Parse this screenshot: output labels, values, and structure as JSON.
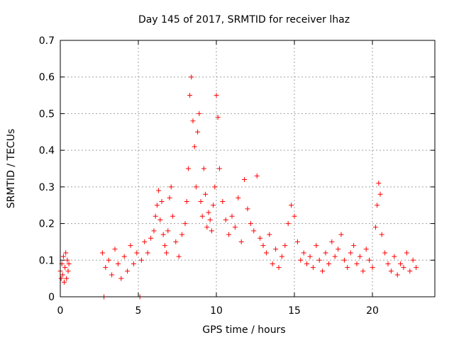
{
  "chart_data": {
    "type": "scatter",
    "title": "Day 145 of 2017, SRMTID for receiver lhaz",
    "xlabel": "GPS time / hours",
    "ylabel": "SRMTID / TECUs",
    "xlim": [
      0,
      24
    ],
    "ylim": [
      0,
      0.7
    ],
    "xticks": [
      0,
      5,
      10,
      15,
      20
    ],
    "xtick_labels": [
      "0",
      "5",
      "10",
      "15",
      "20"
    ],
    "yticks": [
      0,
      0.1,
      0.2,
      0.3,
      0.4,
      0.5,
      0.6,
      0.7
    ],
    "ytick_labels": [
      "0",
      "0.1",
      "0.2",
      "0.3",
      "0.4",
      "0.5",
      "0.6",
      "0.7"
    ],
    "grid": true,
    "marker": "plus",
    "color": "#ff0000",
    "series": [
      {
        "name": "SRMTID",
        "x": [
          0.0,
          0.05,
          0.1,
          0.15,
          0.2,
          0.25,
          0.3,
          0.35,
          0.4,
          0.45,
          0.5,
          0.55,
          2.8,
          5.1,
          2.7,
          2.9,
          3.1,
          3.3,
          3.5,
          3.7,
          3.9,
          4.1,
          4.3,
          4.5,
          4.7,
          4.9,
          5.2,
          5.4,
          5.6,
          5.8,
          6.0,
          6.1,
          6.2,
          6.3,
          6.4,
          6.5,
          6.6,
          6.7,
          6.8,
          6.9,
          7.0,
          7.1,
          7.2,
          7.4,
          7.6,
          7.8,
          8.0,
          8.1,
          8.2,
          8.3,
          8.4,
          8.5,
          8.6,
          8.7,
          8.8,
          8.9,
          9.0,
          9.1,
          9.2,
          9.3,
          9.4,
          9.5,
          9.6,
          9.7,
          9.8,
          9.9,
          10.0,
          10.1,
          10.2,
          10.4,
          10.6,
          10.8,
          11.0,
          11.2,
          11.4,
          11.6,
          11.8,
          12.0,
          12.2,
          12.4,
          12.6,
          12.8,
          13.0,
          13.2,
          13.4,
          13.6,
          13.8,
          14.0,
          14.2,
          14.4,
          14.6,
          14.8,
          15.0,
          15.2,
          15.4,
          15.6,
          15.8,
          16.0,
          16.2,
          16.4,
          16.6,
          16.8,
          17.0,
          17.2,
          17.4,
          17.6,
          17.8,
          18.0,
          18.2,
          18.4,
          18.6,
          18.8,
          19.0,
          19.2,
          19.4,
          19.6,
          19.8,
          20.0,
          20.2,
          20.3,
          20.4,
          20.5,
          20.6,
          20.8,
          21.0,
          21.2,
          21.4,
          21.6,
          21.8,
          22.0,
          22.2,
          22.4,
          22.6,
          22.8
        ],
        "y": [
          0.07,
          0.05,
          0.09,
          0.06,
          0.11,
          0.04,
          0.08,
          0.12,
          0.05,
          0.1,
          0.07,
          0.09,
          0.0,
          0.0,
          0.12,
          0.08,
          0.1,
          0.06,
          0.13,
          0.09,
          0.05,
          0.11,
          0.07,
          0.14,
          0.09,
          0.12,
          0.1,
          0.15,
          0.12,
          0.16,
          0.18,
          0.22,
          0.25,
          0.29,
          0.21,
          0.26,
          0.17,
          0.14,
          0.12,
          0.18,
          0.27,
          0.3,
          0.22,
          0.15,
          0.11,
          0.17,
          0.2,
          0.26,
          0.35,
          0.55,
          0.6,
          0.48,
          0.41,
          0.3,
          0.45,
          0.5,
          0.26,
          0.22,
          0.35,
          0.28,
          0.19,
          0.23,
          0.21,
          0.18,
          0.25,
          0.3,
          0.55,
          0.49,
          0.35,
          0.26,
          0.21,
          0.17,
          0.22,
          0.19,
          0.27,
          0.15,
          0.32,
          0.24,
          0.2,
          0.18,
          0.33,
          0.16,
          0.14,
          0.12,
          0.17,
          0.09,
          0.13,
          0.08,
          0.11,
          0.14,
          0.2,
          0.25,
          0.22,
          0.15,
          0.1,
          0.12,
          0.09,
          0.11,
          0.08,
          0.14,
          0.1,
          0.07,
          0.12,
          0.09,
          0.15,
          0.11,
          0.13,
          0.17,
          0.1,
          0.08,
          0.12,
          0.14,
          0.09,
          0.11,
          0.07,
          0.13,
          0.1,
          0.08,
          0.19,
          0.25,
          0.31,
          0.28,
          0.17,
          0.12,
          0.09,
          0.07,
          0.11,
          0.06,
          0.09,
          0.08,
          0.12,
          0.07,
          0.1,
          0.08
        ]
      }
    ]
  }
}
